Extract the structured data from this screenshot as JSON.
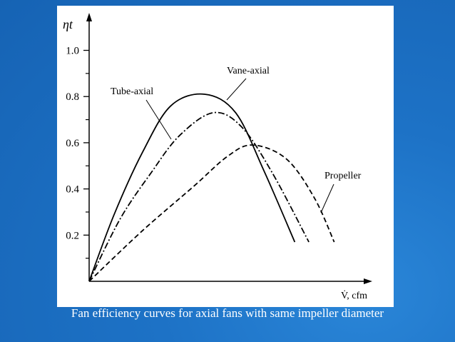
{
  "chart_data": {
    "type": "line",
    "caption": "Fan efficiency curves for axial fans with same impeller diameter",
    "xlabel": "V̇, cfm",
    "ylabel": "ηt",
    "xlim": [
      0,
      1
    ],
    "ylim": [
      0,
      1.15
    ],
    "yticks": [
      {
        "value": 1,
        "label": "1.0"
      },
      0.8,
      0.6,
      0.4,
      0.2
    ],
    "yminorticks": [
      0.1,
      0.3,
      0.5,
      0.7,
      0.9
    ],
    "series": [
      {
        "name": "Vane-axial",
        "color": "#000000",
        "dash": "solid",
        "x": [
          0,
          0.089,
          0.19,
          0.29,
          0.41,
          0.52,
          0.62,
          0.73
        ],
        "values": [
          0,
          0.29,
          0.56,
          0.76,
          0.81,
          0.73,
          0.48,
          0.17
        ]
      },
      {
        "name": "Tube-axial",
        "color": "#000000",
        "dash": "dashdot",
        "x": [
          0,
          0.11,
          0.22,
          0.32,
          0.44,
          0.54,
          0.65,
          0.78
        ],
        "values": [
          0,
          0.27,
          0.47,
          0.63,
          0.73,
          0.67,
          0.47,
          0.17
        ]
      },
      {
        "name": "Propeller",
        "color": "#000000",
        "dash": "dashed",
        "x": [
          0,
          0.19,
          0.37,
          0.49,
          0.58,
          0.7,
          0.8,
          0.87
        ],
        "values": [
          0,
          0.22,
          0.41,
          0.54,
          0.59,
          0.53,
          0.36,
          0.17
        ]
      }
    ]
  }
}
